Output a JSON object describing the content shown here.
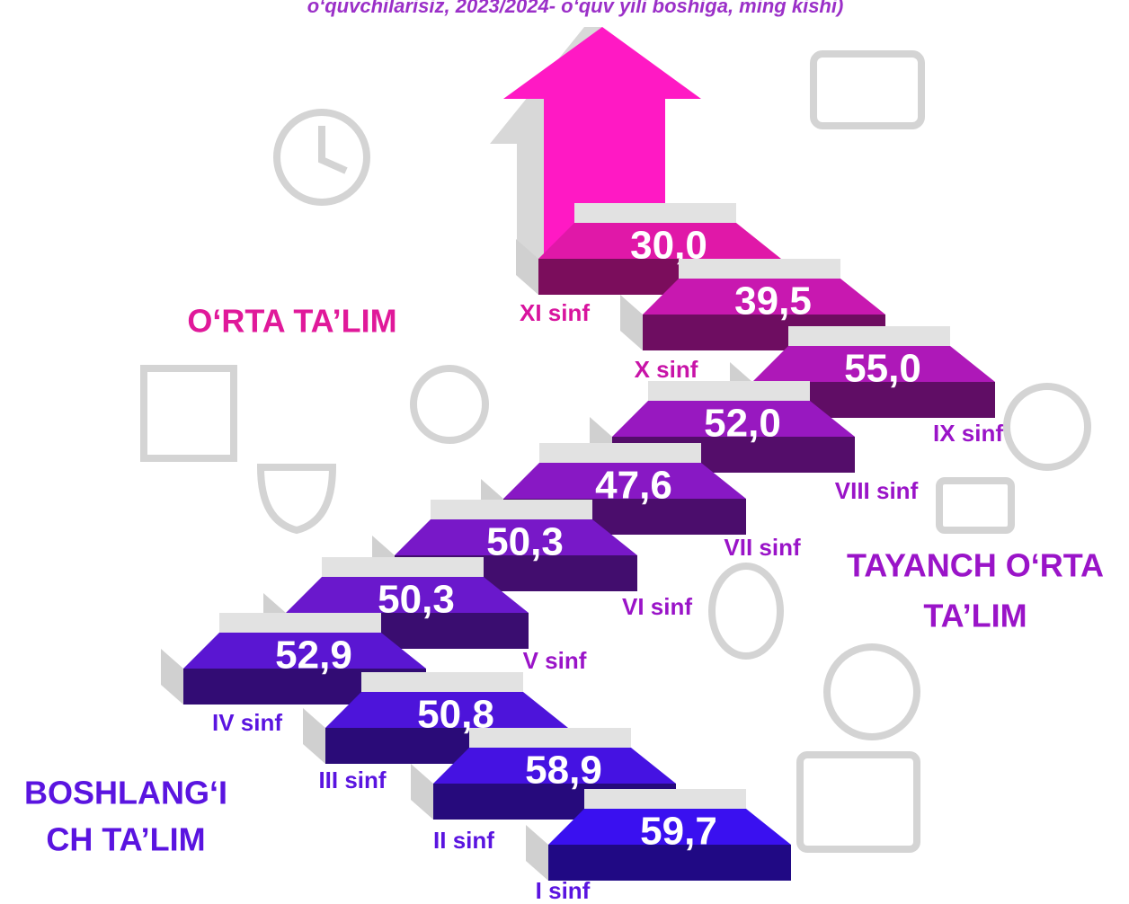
{
  "header": {
    "subtitle": "o‘quvchilarisiz, 2023/2024- o‘quv yili boshiga, ming kishi)"
  },
  "sections": {
    "primary": [
      "BOSHLANG‘I",
      "CH TA’LIM"
    ],
    "basic": [
      "TAYANCH O‘RTA",
      "TA’LIM"
    ],
    "secondary": "O‘RTA TA’LIM"
  },
  "steps": [
    {
      "grade": "I sinf",
      "value": "59,7"
    },
    {
      "grade": "II sinf",
      "value": "58,9"
    },
    {
      "grade": "III sinf",
      "value": "50,8"
    },
    {
      "grade": "IV sinf",
      "value": "52,9"
    },
    {
      "grade": "V sinf",
      "value": "50,3"
    },
    {
      "grade": "VI sinf",
      "value": "50,3"
    },
    {
      "grade": "VII sinf",
      "value": "47,6"
    },
    {
      "grade": "VIII sinf",
      "value": "52,0"
    },
    {
      "grade": "IX sinf",
      "value": "55,0"
    },
    {
      "grade": "X sinf",
      "value": "39,5"
    },
    {
      "grade": "XI sinf",
      "value": "30,0"
    }
  ]
}
